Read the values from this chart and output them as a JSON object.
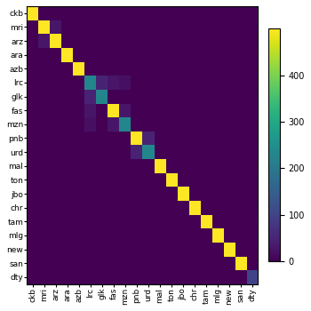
{
  "labels": [
    "ckb",
    "mri",
    "arz",
    "ara",
    "azb",
    "lrc",
    "glk",
    "fas",
    "mzn",
    "pnb",
    "urd",
    "mal",
    "ton",
    "jbo",
    "chr",
    "tam",
    "mlg",
    "new",
    "san",
    "dty"
  ],
  "matrix": [
    [
      500,
      0,
      0,
      0,
      0,
      0,
      0,
      0,
      0,
      0,
      0,
      0,
      0,
      0,
      0,
      0,
      0,
      0,
      0,
      0
    ],
    [
      0,
      500,
      30,
      0,
      0,
      0,
      0,
      0,
      0,
      0,
      0,
      0,
      0,
      0,
      0,
      0,
      0,
      0,
      0,
      0
    ],
    [
      0,
      30,
      500,
      0,
      0,
      0,
      0,
      0,
      0,
      0,
      0,
      0,
      0,
      0,
      0,
      0,
      0,
      0,
      0,
      0
    ],
    [
      0,
      0,
      0,
      500,
      0,
      0,
      0,
      0,
      0,
      0,
      0,
      0,
      0,
      0,
      0,
      0,
      0,
      0,
      0,
      0
    ],
    [
      0,
      0,
      0,
      0,
      500,
      0,
      0,
      0,
      0,
      0,
      0,
      0,
      0,
      0,
      0,
      0,
      0,
      0,
      0,
      0
    ],
    [
      0,
      0,
      0,
      0,
      0,
      230,
      50,
      30,
      20,
      0,
      0,
      0,
      0,
      0,
      0,
      0,
      0,
      0,
      0,
      0
    ],
    [
      0,
      0,
      0,
      0,
      0,
      50,
      230,
      0,
      0,
      0,
      0,
      0,
      0,
      0,
      0,
      0,
      0,
      0,
      0,
      0
    ],
    [
      0,
      0,
      0,
      0,
      0,
      30,
      0,
      500,
      30,
      0,
      0,
      0,
      0,
      0,
      0,
      0,
      0,
      0,
      0,
      0
    ],
    [
      0,
      0,
      0,
      0,
      0,
      20,
      0,
      30,
      230,
      0,
      0,
      0,
      0,
      0,
      0,
      0,
      0,
      0,
      0,
      0
    ],
    [
      0,
      0,
      0,
      0,
      0,
      0,
      0,
      0,
      0,
      500,
      50,
      0,
      0,
      0,
      0,
      0,
      0,
      0,
      0,
      0
    ],
    [
      0,
      0,
      0,
      0,
      0,
      0,
      0,
      0,
      0,
      50,
      230,
      0,
      0,
      0,
      0,
      0,
      0,
      0,
      0,
      0
    ],
    [
      0,
      0,
      0,
      0,
      0,
      0,
      0,
      0,
      0,
      0,
      0,
      500,
      0,
      0,
      0,
      0,
      0,
      0,
      0,
      0
    ],
    [
      0,
      0,
      0,
      0,
      0,
      0,
      0,
      0,
      0,
      0,
      0,
      0,
      500,
      0,
      0,
      0,
      0,
      0,
      0,
      0
    ],
    [
      0,
      0,
      0,
      0,
      0,
      0,
      0,
      0,
      0,
      0,
      0,
      0,
      0,
      500,
      0,
      0,
      0,
      0,
      0,
      0
    ],
    [
      0,
      0,
      0,
      0,
      0,
      0,
      0,
      0,
      0,
      0,
      0,
      0,
      0,
      0,
      500,
      0,
      0,
      0,
      0,
      0
    ],
    [
      0,
      0,
      0,
      0,
      0,
      0,
      0,
      0,
      0,
      0,
      0,
      0,
      0,
      0,
      0,
      500,
      0,
      0,
      0,
      0
    ],
    [
      0,
      0,
      0,
      0,
      0,
      0,
      0,
      0,
      0,
      0,
      0,
      0,
      0,
      0,
      0,
      0,
      500,
      0,
      0,
      0
    ],
    [
      0,
      0,
      0,
      0,
      0,
      0,
      0,
      0,
      0,
      0,
      0,
      0,
      0,
      0,
      0,
      0,
      0,
      500,
      0,
      0
    ],
    [
      0,
      0,
      0,
      0,
      0,
      0,
      0,
      0,
      0,
      0,
      0,
      0,
      0,
      0,
      0,
      0,
      0,
      0,
      500,
      0
    ],
    [
      0,
      0,
      0,
      0,
      0,
      0,
      0,
      0,
      0,
      0,
      0,
      0,
      0,
      0,
      0,
      0,
      0,
      0,
      0,
      100
    ]
  ],
  "cmap": "viridis",
  "vmin": 0,
  "vmax": 500,
  "colorbar_ticks": [
    0,
    100,
    200,
    300,
    400
  ],
  "figsize": [
    3.5,
    3.5
  ],
  "dpi": 100,
  "tick_fontsize": 6.5
}
